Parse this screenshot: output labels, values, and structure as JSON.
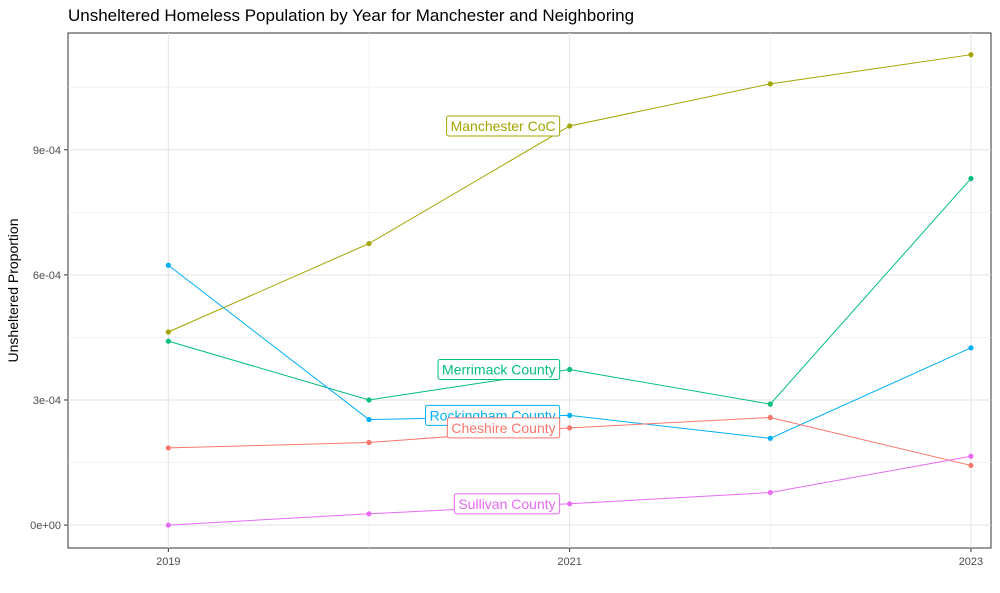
{
  "chart_data": {
    "type": "line",
    "title": "Unsheltered Homeless Population by Year for Manchester and Neighboring",
    "xlabel": "",
    "ylabel": "Unsheltered Proportion",
    "x": [
      2019,
      2020,
      2021,
      2022,
      2023
    ],
    "x_ticks": [
      "2019",
      "2021",
      "2023"
    ],
    "xlim": [
      2018.5,
      2023.1
    ],
    "y_ticks": [
      "0e+00",
      "3e-04",
      "6e-04",
      "9e-04"
    ],
    "y_tick_values": [
      0,
      0.0003,
      0.0006,
      0.0009
    ],
    "ylim": [
      -5.5e-05,
      0.00118
    ],
    "grid": true,
    "legend": "none",
    "series": [
      {
        "name": "Manchester CoC",
        "color": "#a3a500",
        "values": [
          0.000463,
          0.000675,
          0.000957,
          0.001058,
          0.001128
        ],
        "label_at": 2021
      },
      {
        "name": "Merrimack County",
        "color": "#00bf7d",
        "values": [
          0.000441,
          0.0003,
          0.000373,
          0.00029,
          0.000831
        ],
        "label_at": 2021
      },
      {
        "name": "Rockingham County",
        "color": "#00b0f6",
        "values": [
          0.000623,
          0.000253,
          0.000263,
          0.000208,
          0.000425
        ],
        "label_at": 2021
      },
      {
        "name": "Cheshire County",
        "color": "#f8766d",
        "values": [
          0.000185,
          0.000198,
          0.000233,
          0.000258,
          0.000143
        ],
        "label_at": 2021
      },
      {
        "name": "Sullivan County",
        "color": "#e76bf3",
        "values": [
          0.0,
          2.7e-05,
          5.1e-05,
          7.8e-05,
          0.000165
        ],
        "label_at": 2021
      }
    ]
  }
}
